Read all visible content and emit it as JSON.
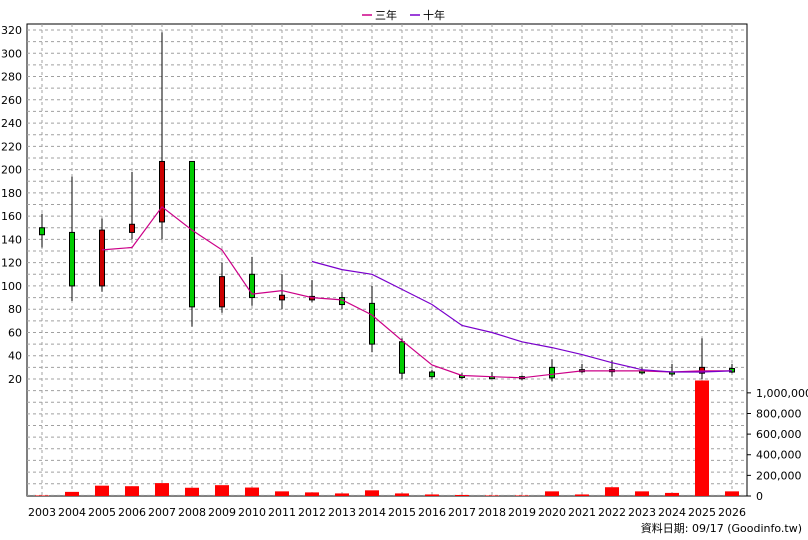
{
  "chart_data": {
    "type": "candlestick+volume",
    "legend": [
      {
        "name": "三年",
        "color": "#cc0088"
      },
      {
        "name": "十年",
        "color": "#7a00cc"
      }
    ],
    "source_text": "資料日期: 09/17  (Goodinfo.tw)",
    "x": [
      "2003",
      "2004",
      "2005",
      "2006",
      "2007",
      "2008",
      "2009",
      "2010",
      "2011",
      "2012",
      "2013",
      "2014",
      "2015",
      "2016",
      "2017",
      "2018",
      "2019",
      "2020",
      "2021",
      "2022",
      "2023",
      "2024",
      "2025",
      "2026"
    ],
    "price_axis": {
      "min": 0,
      "max": 330,
      "ticks": [
        20,
        40,
        60,
        80,
        100,
        120,
        140,
        160,
        180,
        200,
        220,
        240,
        260,
        280,
        300,
        320
      ]
    },
    "volume_axis": {
      "min": 0,
      "max": 1100000,
      "ticks": [
        0,
        200000,
        400000,
        600000,
        800000,
        1000000
      ],
      "tick_labels": [
        "0",
        "200,000",
        "400,000",
        "600,000",
        "800,000",
        "1,000,000"
      ]
    },
    "candles": [
      {
        "x": "2003",
        "open": 144,
        "close": 150,
        "high": 162,
        "low": 133
      },
      {
        "x": "2004",
        "open": 100,
        "close": 146,
        "high": 194,
        "low": 87
      },
      {
        "x": "2005",
        "open": 148,
        "close": 100,
        "high": 158,
        "low": 95
      },
      {
        "x": "2006",
        "open": 153,
        "close": 146,
        "high": 198,
        "low": 140
      },
      {
        "x": "2007",
        "open": 207,
        "close": 155,
        "high": 318,
        "low": 140
      },
      {
        "x": "2008",
        "open": 82,
        "close": 207,
        "high": 207,
        "low": 65
      },
      {
        "x": "2009",
        "open": 108,
        "close": 82,
        "high": 120,
        "low": 77
      },
      {
        "x": "2010",
        "open": 90,
        "close": 110,
        "high": 125,
        "low": 83
      },
      {
        "x": "2011",
        "open": 92,
        "close": 88,
        "high": 110,
        "low": 80
      },
      {
        "x": "2012",
        "open": 91,
        "close": 88,
        "high": 105,
        "low": 86
      },
      {
        "x": "2013",
        "open": 84,
        "close": 90,
        "high": 95,
        "low": 80
      },
      {
        "x": "2014",
        "open": 50,
        "close": 85,
        "high": 100,
        "low": 43
      },
      {
        "x": "2015",
        "open": 25,
        "close": 52,
        "high": 55,
        "low": 20
      },
      {
        "x": "2016",
        "open": 22,
        "close": 26,
        "high": 28,
        "low": 20
      },
      {
        "x": "2017",
        "open": 22,
        "close": 23,
        "high": 25,
        "low": 20
      },
      {
        "x": "2018",
        "open": 22,
        "close": 22,
        "high": 26,
        "low": 20
      },
      {
        "x": "2019",
        "open": 22,
        "close": 21,
        "high": 23,
        "low": 19
      },
      {
        "x": "2020",
        "open": 21,
        "close": 30,
        "high": 37,
        "low": 18
      },
      {
        "x": "2021",
        "open": 28,
        "close": 28,
        "high": 33,
        "low": 25
      },
      {
        "x": "2022",
        "open": 28,
        "close": 27,
        "high": 36,
        "low": 22
      },
      {
        "x": "2023",
        "open": 27,
        "close": 27,
        "high": 30,
        "low": 24
      },
      {
        "x": "2024",
        "open": 25,
        "close": 26,
        "high": 33,
        "low": 22
      },
      {
        "x": "2025",
        "open": 30,
        "close": 25,
        "high": 55,
        "low": 20
      },
      {
        "x": "2026",
        "open": 26,
        "close": 29,
        "high": 33,
        "low": 25
      }
    ],
    "series": [
      {
        "name": "三年",
        "color": "#cc0088",
        "values": [
          null,
          null,
          131,
          133,
          168,
          148,
          131,
          93,
          96,
          90,
          88,
          75,
          53,
          32,
          23,
          22,
          21,
          24,
          27,
          27,
          27,
          26,
          27,
          27
        ]
      },
      {
        "name": "十年",
        "color": "#7a00cc",
        "values": [
          null,
          null,
          null,
          null,
          null,
          null,
          null,
          null,
          null,
          121,
          114,
          110,
          97,
          84,
          66,
          60,
          52,
          47,
          41,
          34,
          28,
          26,
          26,
          27
        ]
      }
    ],
    "volume": [
      5000,
      40000,
      100000,
      95000,
      125000,
      80000,
      105000,
      82000,
      45000,
      35000,
      25000,
      55000,
      25000,
      15000,
      10000,
      5000,
      5000,
      45000,
      15000,
      85000,
      45000,
      30000,
      1120000,
      45000
    ]
  }
}
